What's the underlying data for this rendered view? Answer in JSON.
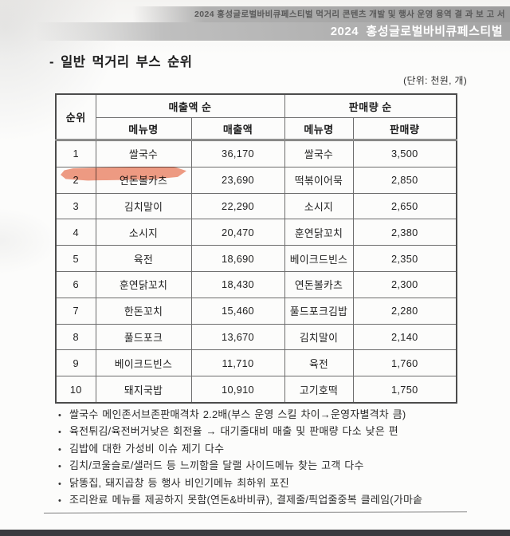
{
  "page_header": {
    "line1": "2024 홍성글로벌바비큐페스티벌 먹거리 콘텐츠 개발 및 행사 운영 용역 결 과 보 고 서",
    "line2": "2024  홍성글로벌바비큐페스티벌"
  },
  "section": {
    "title": "- 일반 먹거리 부스 순위",
    "unit_note": "(단위: 천원, 개)"
  },
  "table": {
    "headers": {
      "rank": "순위",
      "revenue_group": "매출액 순",
      "volume_group": "판매량 순",
      "menu_name_revenue": "메뉴명",
      "revenue": "매출액",
      "menu_name_volume": "메뉴명",
      "volume": "판매량"
    },
    "rows": [
      [
        "1",
        "쌀국수",
        "36,170",
        "쌀국수",
        "3,500"
      ],
      [
        "2",
        "연돈볼카츠",
        "23,690",
        "떡볶이어묵",
        "2,850"
      ],
      [
        "3",
        "김치말이",
        "22,290",
        "소시지",
        "2,650"
      ],
      [
        "4",
        "소시지",
        "20,470",
        "훈연닭꼬치",
        "2,380"
      ],
      [
        "5",
        "육전",
        "18,690",
        "베이크드빈스",
        "2,350"
      ],
      [
        "6",
        "훈연닭꼬치",
        "18,430",
        "연돈볼카츠",
        "2,300"
      ],
      [
        "7",
        "한돈꼬치",
        "15,460",
        "풀드포크김밥",
        "2,280"
      ],
      [
        "8",
        "풀드포크",
        "13,670",
        "김치말이",
        "2,140"
      ],
      [
        "9",
        "베이크드빈스",
        "11,710",
        "육전",
        "1,760"
      ],
      [
        "10",
        "돼지국밥",
        "10,910",
        "고기호떡",
        "1,750"
      ]
    ]
  },
  "annotation": {
    "highlight": {
      "target": "연돈볼카츠 (순위 2, 매출액 순 메뉴명)",
      "color": "#ee8e73"
    }
  },
  "notes": [
    "쌀국수 메인존서브존판매격차 2.2배(부스 운영 스킬 차이→운영자별격차 큼)",
    "육전튀김/육전버거낮은 회전율 → 대기줄대비 매출 및 판매량 다소 낮은 편",
    "김밥에 대한 가성비 이슈 제기 다수",
    "김치/코울슬로/샐러드 등 느끼함을 달랠 사이드메뉴 찾는 고객 다수",
    "닭똥집, 돼지곱창 등 행사 비인기메뉴 최하위 포진",
    "조리완료 메뉴를 제공하지 못함(연돈&바비큐), 결제줄/픽업줄중복 클레임(가마솥"
  ],
  "colors": {
    "highlight_marker": "#ee8e73",
    "header_band_text": "#ffffff",
    "bottom_bar": "#3a3a3f"
  }
}
